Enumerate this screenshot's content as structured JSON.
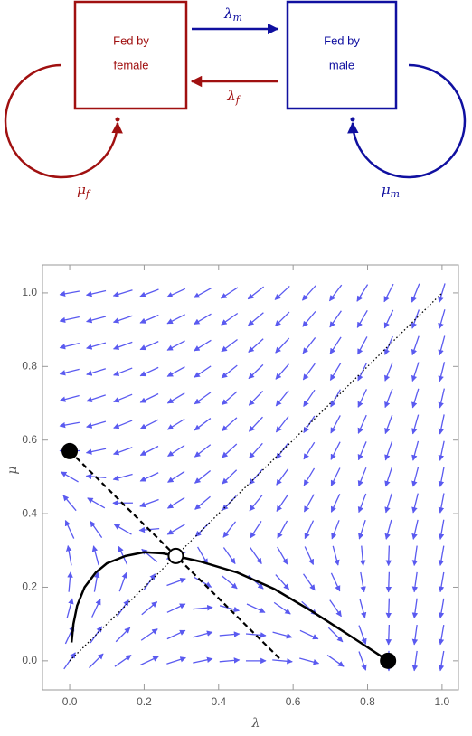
{
  "diagram": {
    "nodes": [
      {
        "lines": [
          "Fed by",
          "female"
        ]
      },
      {
        "lines": [
          "Fed by",
          "male"
        ]
      }
    ],
    "edges": [
      {
        "symbol": "λ",
        "subscript": "m"
      },
      {
        "symbol": "λ",
        "subscript": "f"
      },
      {
        "symbol": "μ",
        "subscript": "f"
      },
      {
        "symbol": "μ",
        "subscript": "m"
      }
    ]
  },
  "chart_data": {
    "type": "vector-field",
    "x_label": "λ",
    "y_label": "μ",
    "xlim": [
      -0.073,
      1.044
    ],
    "ylim": [
      -0.079,
      1.076
    ],
    "xticks": [
      {
        "value": 0,
        "label": "0.0"
      },
      {
        "value": 0.2,
        "label": "0.2"
      },
      {
        "value": 0.4,
        "label": "0.4"
      },
      {
        "value": 0.6,
        "label": "0.6"
      },
      {
        "value": 0.8,
        "label": "0.8"
      },
      {
        "value": 1,
        "label": "1.0"
      }
    ],
    "yticks": [
      {
        "value": 0,
        "label": "0.0"
      },
      {
        "value": 0.2,
        "label": "0.2"
      },
      {
        "value": 0.4,
        "label": "0.4"
      },
      {
        "value": 0.6,
        "label": "0.6"
      },
      {
        "value": 0.8,
        "label": "0.8"
      },
      {
        "value": 1,
        "label": "1.0"
      }
    ],
    "field": {
      "color": "#5a5af0",
      "x": [
        0,
        0.071,
        0.143,
        0.214,
        0.286,
        0.357,
        0.429,
        0.5,
        0.571,
        0.643,
        0.714,
        0.786,
        0.857,
        0.929,
        1
      ],
      "y": [
        1,
        0.929,
        0.857,
        0.786,
        0.714,
        0.643,
        0.571,
        0.5,
        0.429,
        0.357,
        0.286,
        0.214,
        0.143,
        0.071,
        0
      ],
      "angles": [
        [
          190,
          193,
          197,
          201,
          205,
          209,
          213,
          218,
          223,
          228,
          233,
          238,
          243,
          248,
          253
        ],
        [
          192,
          195,
          199,
          203,
          207,
          211,
          215,
          220,
          225,
          230,
          235,
          240,
          245,
          250,
          254
        ],
        [
          193,
          196,
          200,
          204,
          208,
          212,
          217,
          222,
          227,
          232,
          237,
          242,
          247,
          251,
          255
        ],
        [
          194,
          197,
          201,
          205,
          209,
          214,
          219,
          224,
          229,
          234,
          239,
          244,
          248,
          252,
          256
        ],
        [
          195,
          198,
          202,
          206,
          211,
          216,
          221,
          226,
          231,
          236,
          241,
          245,
          249,
          253,
          257
        ],
        [
          190,
          196,
          202,
          207,
          212,
          217,
          222,
          227,
          232,
          237,
          242,
          246,
          250,
          254,
          258
        ],
        [
          180,
          192,
          200,
          207,
          213,
          218,
          223,
          228,
          233,
          238,
          243,
          247,
          251,
          255,
          258
        ],
        [
          150,
          175,
          195,
          205,
          213,
          219,
          224,
          229,
          234,
          239,
          244,
          248,
          252,
          255,
          259
        ],
        [
          130,
          150,
          180,
          200,
          212,
          220,
          226,
          231,
          236,
          241,
          245,
          249,
          253,
          256,
          259
        ],
        [
          115,
          125,
          150,
          185,
          210,
          225,
          232,
          237,
          241,
          245,
          249,
          252,
          255,
          257,
          260
        ],
        [
          100,
          105,
          115,
          140,
          200,
          300,
          305,
          305,
          300,
          295,
          285,
          275,
          268,
          262,
          260
        ],
        [
          85,
          80,
          70,
          55,
          20,
          330,
          320,
          318,
          312,
          305,
          295,
          280,
          268,
          262,
          260
        ],
        [
          75,
          65,
          55,
          40,
          25,
          5,
          345,
          335,
          325,
          318,
          305,
          285,
          268,
          262,
          260
        ],
        [
          65,
          55,
          45,
          35,
          25,
          15,
          5,
          355,
          345,
          335,
          315,
          290,
          268,
          262,
          260
        ],
        [
          55,
          45,
          35,
          25,
          18,
          12,
          5,
          0,
          355,
          345,
          325,
          290,
          270,
          262,
          260
        ]
      ]
    },
    "curve": {
      "color": "#000000",
      "x": [
        0.005,
        0.01,
        0.02,
        0.04,
        0.07,
        0.1,
        0.15,
        0.2,
        0.25,
        0.285,
        0.35,
        0.45,
        0.55,
        0.65,
        0.75,
        0.855
      ],
      "y": [
        0.05,
        0.1,
        0.15,
        0.2,
        0.24,
        0.265,
        0.285,
        0.295,
        0.292,
        0.285,
        0.27,
        0.24,
        0.195,
        0.135,
        0.07,
        0
      ]
    },
    "separatrix": {
      "x": [
        0,
        0.57
      ],
      "y": [
        0.57,
        0
      ]
    },
    "diagonal": {
      "x": [
        0,
        1
      ],
      "y": [
        0,
        1
      ]
    },
    "stable_points": {
      "x": [
        0,
        0.855
      ],
      "y": [
        0.57,
        0
      ]
    },
    "saddle_point": {
      "x": [
        0.285
      ],
      "y": [
        0.285
      ]
    }
  }
}
